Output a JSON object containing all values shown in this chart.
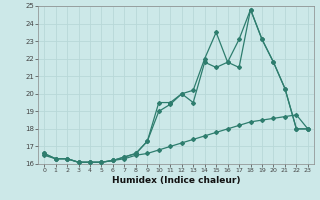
{
  "xlabel": "Humidex (Indice chaleur)",
  "xlim": [
    -0.5,
    23.5
  ],
  "ylim": [
    16,
    25
  ],
  "yticks": [
    16,
    17,
    18,
    19,
    20,
    21,
    22,
    23,
    24,
    25
  ],
  "xticks": [
    0,
    1,
    2,
    3,
    4,
    5,
    6,
    7,
    8,
    9,
    10,
    11,
    12,
    13,
    14,
    15,
    16,
    17,
    18,
    19,
    20,
    21,
    22,
    23
  ],
  "background_color": "#cce8e8",
  "grid_color": "#aacccc",
  "line_color": "#2e7d6e",
  "series1_x": [
    0,
    1,
    2,
    3,
    4,
    5,
    6,
    7,
    8,
    9,
    10,
    11,
    12,
    13,
    14,
    15,
    16,
    17,
    18,
    19,
    20,
    21,
    22,
    23
  ],
  "series1_y": [
    16.6,
    16.3,
    16.3,
    16.1,
    16.1,
    16.1,
    16.2,
    16.4,
    16.6,
    17.3,
    19.5,
    19.5,
    20.0,
    20.2,
    22.0,
    23.5,
    21.8,
    21.5,
    24.8,
    23.1,
    21.8,
    20.3,
    18.0,
    18.0
  ],
  "series2_x": [
    0,
    1,
    2,
    3,
    4,
    5,
    6,
    7,
    8,
    9,
    10,
    11,
    12,
    13,
    14,
    15,
    16,
    17,
    18,
    19,
    20,
    21,
    22,
    23
  ],
  "series2_y": [
    16.6,
    16.3,
    16.3,
    16.1,
    16.1,
    16.1,
    16.2,
    16.4,
    16.6,
    17.3,
    19.0,
    19.4,
    20.0,
    19.5,
    21.8,
    21.5,
    21.8,
    23.1,
    24.8,
    23.1,
    21.8,
    20.3,
    18.0,
    18.0
  ],
  "series3_x": [
    0,
    1,
    2,
    3,
    4,
    5,
    6,
    7,
    8,
    9,
    10,
    11,
    12,
    13,
    14,
    15,
    16,
    17,
    18,
    19,
    20,
    21,
    22,
    23
  ],
  "series3_y": [
    16.5,
    16.3,
    16.3,
    16.1,
    16.1,
    16.1,
    16.2,
    16.3,
    16.5,
    16.6,
    16.8,
    17.0,
    17.2,
    17.4,
    17.6,
    17.8,
    18.0,
    18.2,
    18.4,
    18.5,
    18.6,
    18.7,
    18.8,
    18.0
  ]
}
